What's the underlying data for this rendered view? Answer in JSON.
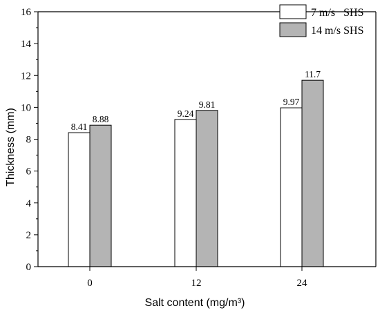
{
  "chart_data": {
    "type": "bar",
    "categories": [
      "0",
      "12",
      "24"
    ],
    "series": [
      {
        "name": "7 m/s   SHS",
        "values": [
          8.41,
          9.24,
          9.97
        ],
        "labels": [
          "8.41",
          "9.24",
          "9.97"
        ],
        "color": "#ffffff"
      },
      {
        "name": "14 m/s SHS",
        "values": [
          8.88,
          9.81,
          11.7
        ],
        "labels": [
          "8.88",
          "9.81",
          "11.7"
        ],
        "color": "#b4b4b4"
      }
    ],
    "xlabel": "Salt content (mg/m³)",
    "ylabel": "Thickness (mm)",
    "ylim": [
      0,
      16
    ],
    "yticks": [
      "0",
      "2",
      "4",
      "6",
      "8",
      "10",
      "12",
      "14",
      "16"
    ],
    "legend_position": "top-right",
    "grid": false
  }
}
